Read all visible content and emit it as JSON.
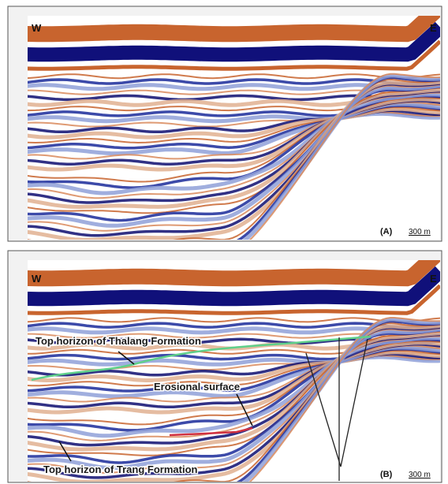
{
  "panel_a": {
    "west_label": "W",
    "east_label": "E",
    "panel_label": "(A)",
    "scale_label": "300 m"
  },
  "panel_b": {
    "west_label": "W",
    "east_label": "E",
    "panel_label": "(B)",
    "scale_label": "300 m",
    "annotations": [
      "Top horizon of Thalang Formation",
      "Erosional surface",
      "Top horizon of Trang Formation"
    ]
  }
}
